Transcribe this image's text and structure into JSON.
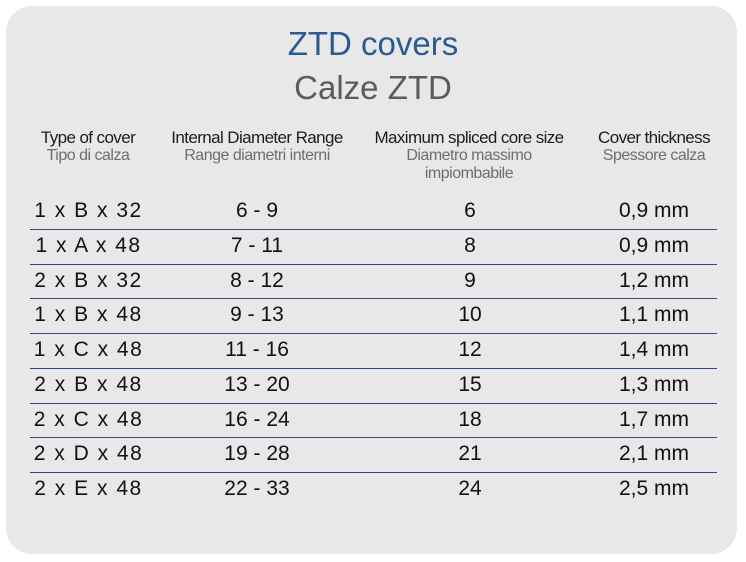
{
  "title": "ZTD covers",
  "subtitle": "Calze ZTD",
  "headers": [
    {
      "en": "Type of cover",
      "it": "Tipo di calza"
    },
    {
      "en": "Internal Diameter Range",
      "it": "Range diametri interni"
    },
    {
      "en": "Maximum spliced core size",
      "it": "Diametro massimo impiombabile"
    },
    {
      "en": "Cover thickness",
      "it": "Spessore calza"
    }
  ],
  "rows": [
    [
      "1 x B x 32",
      "6 - 9",
      "6",
      "0,9 mm"
    ],
    [
      "1 x A x 48",
      "7 - 11",
      "8",
      "0,9 mm"
    ],
    [
      "2 x B x 32",
      "8 - 12",
      "9",
      "1,2 mm"
    ],
    [
      "1 x B x 48",
      "9 - 13",
      "10",
      "1,1 mm"
    ],
    [
      "1 x C x 48",
      "11 - 16",
      "12",
      "1,4 mm"
    ],
    [
      "2 x B x 48",
      "13 - 20",
      "15",
      "1,3 mm"
    ],
    [
      "2 x C x 48",
      "16 - 24",
      "18",
      "1,7 mm"
    ],
    [
      "2 x D x 48",
      "19 - 28",
      "21",
      "2,1 mm"
    ],
    [
      "2 x E x 48",
      "22 - 33",
      "24",
      "2,5 mm"
    ]
  ]
}
